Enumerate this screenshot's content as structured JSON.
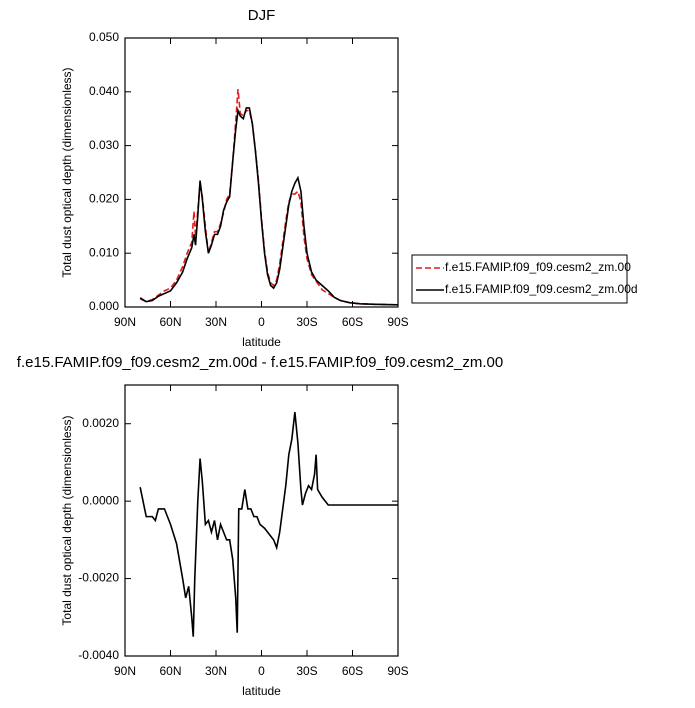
{
  "chart_data": [
    {
      "type": "line",
      "title": "DJF",
      "xlabel": "latitude",
      "ylabel": "Total dust optical depth (dimensionless)",
      "x": [
        80,
        76,
        72,
        68,
        64,
        60,
        56,
        52,
        49,
        46,
        44.5,
        43.5,
        42,
        40.5,
        39,
        37,
        35,
        33,
        31,
        29,
        27,
        25,
        23,
        21,
        19,
        17,
        15.5,
        14,
        12,
        10,
        8,
        6,
        4,
        2,
        0,
        -2,
        -4,
        -6,
        -8,
        -10,
        -12,
        -14,
        -16,
        -18,
        -20,
        -22,
        -24,
        -26,
        -28,
        -30,
        -33,
        -36,
        -40,
        -44,
        -48,
        -52,
        -58,
        -65,
        -75,
        -90
      ],
      "series": [
        {
          "name": "f.e15.FAMIP.f09_f09.cesm2_zm.00",
          "color": "#e41a1c",
          "line_style": "dashed",
          "values": [
            0.0015,
            0.001,
            0.0014,
            0.0022,
            0.003,
            0.0035,
            0.005,
            0.0075,
            0.01,
            0.012,
            0.0178,
            0.013,
            0.018,
            0.023,
            0.0205,
            0.015,
            0.01,
            0.012,
            0.014,
            0.014,
            0.0155,
            0.0175,
            0.02,
            0.021,
            0.027,
            0.0345,
            0.0405,
            0.036,
            0.0355,
            0.0365,
            0.0365,
            0.034,
            0.029,
            0.0235,
            0.0165,
            0.0105,
            0.0065,
            0.0045,
            0.004,
            0.005,
            0.008,
            0.012,
            0.016,
            0.0195,
            0.021,
            0.021,
            0.0215,
            0.0195,
            0.013,
            0.009,
            0.006,
            0.0048,
            0.0032,
            0.0025,
            0.0018,
            0.0012,
            0.0008,
            0.0006,
            0.0005,
            0.0004
          ]
        },
        {
          "name": "f.e15.FAMIP.f09_f09.cesm2_zm.00d",
          "color": "#000000",
          "line_style": "solid",
          "values": [
            0.0017,
            0.001,
            0.0012,
            0.002,
            0.0025,
            0.003,
            0.0045,
            0.0065,
            0.009,
            0.011,
            0.0135,
            0.0115,
            0.017,
            0.0235,
            0.02,
            0.014,
            0.01,
            0.0115,
            0.0135,
            0.0135,
            0.015,
            0.018,
            0.0195,
            0.0205,
            0.027,
            0.033,
            0.0365,
            0.0355,
            0.035,
            0.037,
            0.037,
            0.034,
            0.029,
            0.023,
            0.016,
            0.01,
            0.006,
            0.004,
            0.0035,
            0.0045,
            0.007,
            0.011,
            0.015,
            0.019,
            0.0215,
            0.023,
            0.024,
            0.0215,
            0.015,
            0.01,
            0.0065,
            0.005,
            0.004,
            0.003,
            0.0018,
            0.0012,
            0.0008,
            0.0006,
            0.0005,
            0.0004
          ]
        }
      ],
      "xlim": [
        90,
        -90
      ],
      "xticks": [
        {
          "value": 90,
          "label": "90N"
        },
        {
          "value": 60,
          "label": "60N"
        },
        {
          "value": 30,
          "label": "30N"
        },
        0,
        {
          "value": -30,
          "label": "30S"
        },
        {
          "value": -60,
          "label": "60S"
        },
        {
          "value": -90,
          "label": "90S"
        }
      ],
      "ylim": [
        0,
        0.05
      ],
      "yticks": [
        {
          "value": 0,
          "label": "0.000"
        },
        {
          "value": 0.01,
          "label": "0.010"
        },
        {
          "value": 0.02,
          "label": "0.020"
        },
        {
          "value": 0.03,
          "label": "0.030"
        },
        {
          "value": 0.04,
          "label": "0.040"
        },
        {
          "value": 0.05,
          "label": "0.050"
        }
      ],
      "legend": "right"
    },
    {
      "type": "line",
      "title": "f.e15.FAMIP.f09_f09.cesm2_zm.00d - f.e15.FAMIP.f09_f09.cesm2_zm.00",
      "xlabel": "latitude",
      "ylabel": "Total dust optical depth (dimensionless)",
      "x": [
        80,
        76,
        72,
        70,
        68,
        64,
        60,
        56,
        52,
        50,
        48,
        46,
        45,
        44,
        42,
        40.5,
        39,
        37,
        35,
        33,
        31,
        29,
        27,
        25,
        23,
        21,
        19,
        17,
        16,
        15,
        13,
        11,
        9,
        7,
        5,
        3,
        1,
        -2,
        -4,
        -6,
        -8,
        -10,
        -12,
        -14,
        -16,
        -18,
        -20,
        -22,
        -24,
        -26,
        -27,
        -29,
        -31,
        -33,
        -35,
        -36,
        -37,
        -40,
        -44,
        -50,
        -60,
        -70,
        -80,
        -90
      ],
      "series": [
        {
          "color": "#000000",
          "line_style": "solid",
          "values": [
            0.00036,
            -0.0004,
            -0.0004,
            -0.0005,
            -0.0002,
            -0.0002,
            -0.0006,
            -0.0011,
            -0.002,
            -0.0025,
            -0.0022,
            -0.003,
            -0.0035,
            -0.002,
            0,
            0.0011,
            0.0005,
            -0.0006,
            -0.0005,
            -0.0008,
            -0.0005,
            -0.001,
            -0.0006,
            -0.0008,
            -0.001,
            -0.001,
            -0.0015,
            -0.0025,
            -0.0034,
            -0.0002,
            -0.0002,
            0.0003,
            -0.0002,
            -0.0002,
            -0.0004,
            -0.0004,
            -0.0006,
            -0.0007,
            -0.0008,
            -0.0009,
            -0.001,
            -0.0012,
            -0.0008,
            -0.0002,
            0.0004,
            0.0012,
            0.0016,
            0.0023,
            0.0015,
            0.0003,
            -0.0001,
            0.0002,
            0.0004,
            0.0003,
            0.0007,
            0.0012,
            0.0003,
            0.0001,
            -0.0001,
            -0.0001,
            -0.0001,
            -0.0001,
            -0.0001,
            -0.0001
          ]
        }
      ],
      "xlim": [
        90,
        -90
      ],
      "xticks": [
        {
          "value": 90,
          "label": "90N"
        },
        {
          "value": 60,
          "label": "60N"
        },
        {
          "value": 30,
          "label": "30N"
        },
        0,
        {
          "value": -30,
          "label": "30S"
        },
        {
          "value": -60,
          "label": "60S"
        },
        {
          "value": -90,
          "label": "90S"
        }
      ],
      "ylim": [
        -0.004,
        0.003
      ],
      "yticks": [
        {
          "value": -0.004,
          "label": "-0.0040"
        },
        {
          "value": -0.002,
          "label": "-0.0020"
        },
        {
          "value": 0,
          "label": "0.0000"
        },
        {
          "value": 0.002,
          "label": "0.0020"
        }
      ]
    }
  ]
}
